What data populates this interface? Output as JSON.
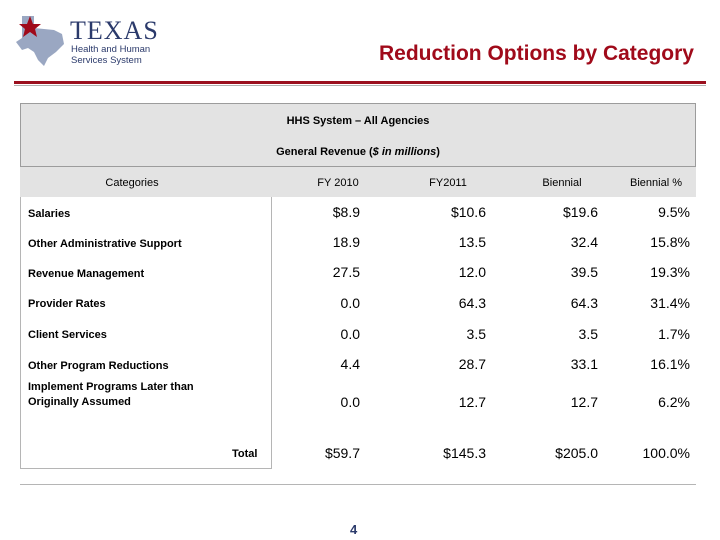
{
  "header": {
    "logo": {
      "word": "TEXAS",
      "line1": "Health and Human",
      "line2": "Services System"
    },
    "title": "Reduction Options by Category"
  },
  "table": {
    "heading1": "HHS System – All Agencies",
    "heading2_main": "General Revenue (",
    "heading2_unit": "$ in millions",
    "heading2_end": ")",
    "columns": [
      "Categories",
      "FY 2010",
      "FY2011",
      "Biennial",
      "Biennial %"
    ],
    "rows": [
      {
        "category": "Salaries",
        "fy2010": "$8.9",
        "fy2011": "$10.6",
        "biennial": "$19.6",
        "pct": "9.5%"
      },
      {
        "category": "Other Administrative Support",
        "fy2010": "18.9",
        "fy2011": "13.5",
        "biennial": "32.4",
        "pct": "15.8%"
      },
      {
        "category": "Revenue Management",
        "fy2010": "27.5",
        "fy2011": "12.0",
        "biennial": "39.5",
        "pct": "19.3%"
      },
      {
        "category": "Provider Rates",
        "fy2010": "0.0",
        "fy2011": "64.3",
        "biennial": "64.3",
        "pct": "31.4%"
      },
      {
        "category": "Client Services",
        "fy2010": "0.0",
        "fy2011": "3.5",
        "biennial": "3.5",
        "pct": "1.7%"
      },
      {
        "category": "Other Program Reductions",
        "fy2010": "4.4",
        "fy2011": "28.7",
        "biennial": "33.1",
        "pct": "16.1%"
      },
      {
        "category_line1": "Implement Programs Later than",
        "category_line2": "Originally Assumed",
        "fy2010": "0.0",
        "fy2011": "12.7",
        "biennial": "12.7",
        "pct": "6.2%"
      }
    ],
    "total": {
      "label": "Total",
      "fy2010": "$59.7",
      "fy2011": "$145.3",
      "biennial": "$205.0",
      "pct": "100.0%"
    }
  },
  "footer": {
    "page_number": "4"
  },
  "colors": {
    "title": "#a00a1a",
    "rule": "#9b0f1e",
    "logo": "#2b3a6b",
    "band": "#e3e3e3"
  }
}
